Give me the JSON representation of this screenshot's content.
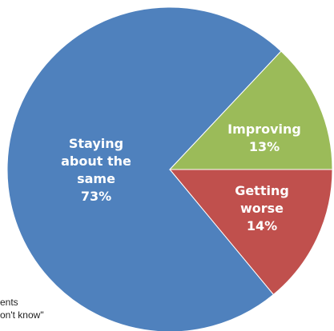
{
  "chart_data": {
    "type": "pie",
    "categories": [
      "Staying about the same",
      "Improving",
      "Getting worse"
    ],
    "values": [
      73,
      13,
      14
    ],
    "labels": [
      [
        "Staying",
        "about the",
        "same",
        "73%"
      ],
      [
        "Improving",
        "13%"
      ],
      [
        "Getting",
        "worse",
        "14%"
      ]
    ],
    "colors": [
      "#4f81bd",
      "#9bbb59",
      "#c0504d"
    ],
    "title": "",
    "legend": "none"
  },
  "footnote": {
    "line1": "ents",
    "line2": "on't know\""
  }
}
